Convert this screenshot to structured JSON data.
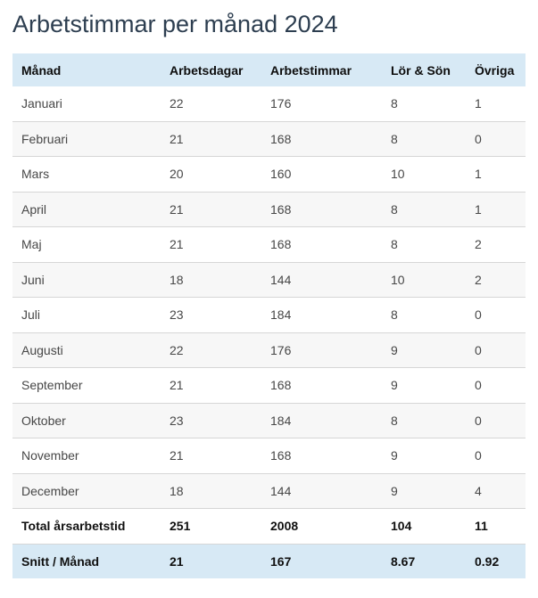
{
  "title": "Arbetstimmar per månad 2024",
  "colors": {
    "accent_light_blue": "#d7e9f5",
    "title_color": "#2d3e50",
    "row_alt_gray": "#f7f7f7",
    "divider_gray": "#d6d6d6"
  },
  "table": {
    "columns": [
      "Månad",
      "Arbetsdagar",
      "Arbetstimmar",
      "Lör & Sön",
      "Övriga"
    ],
    "rows": [
      [
        "Januari",
        "22",
        "176",
        "8",
        "1"
      ],
      [
        "Februari",
        "21",
        "168",
        "8",
        "0"
      ],
      [
        "Mars",
        "20",
        "160",
        "10",
        "1"
      ],
      [
        "April",
        "21",
        "168",
        "8",
        "1"
      ],
      [
        "Maj",
        "21",
        "168",
        "8",
        "2"
      ],
      [
        "Juni",
        "18",
        "144",
        "10",
        "2"
      ],
      [
        "Juli",
        "23",
        "184",
        "8",
        "0"
      ],
      [
        "Augusti",
        "22",
        "176",
        "9",
        "0"
      ],
      [
        "September",
        "21",
        "168",
        "9",
        "0"
      ],
      [
        "Oktober",
        "23",
        "184",
        "8",
        "0"
      ],
      [
        "November",
        "21",
        "168",
        "9",
        "0"
      ],
      [
        "December",
        "18",
        "144",
        "9",
        "4"
      ]
    ],
    "total_row": [
      "Total årsarbetstid",
      "251",
      "2008",
      "104",
      "11"
    ],
    "average_row": [
      "Snitt / Månad",
      "21",
      "167",
      "8.67",
      "0.92"
    ]
  }
}
